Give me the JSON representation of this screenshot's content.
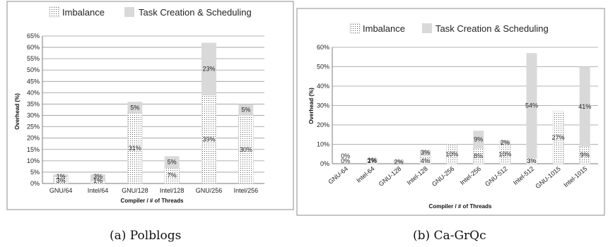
{
  "legend": {
    "imbalance_label": "Imbalance",
    "task_label": "Task Creation & Scheduling"
  },
  "colors": {
    "task": "#d9d9d9",
    "imbalance_pattern": "dotted"
  },
  "chart_data": [
    {
      "type": "bar",
      "stacked": true,
      "caption": "(a) Polblogs",
      "xlabel": "Compiler / # of Threads",
      "ylabel": "Overhead (%)",
      "ylim": [
        0,
        65
      ],
      "yticks": [
        0,
        5,
        10,
        15,
        20,
        25,
        30,
        35,
        40,
        45,
        50,
        55,
        60,
        65
      ],
      "grid": true,
      "legend_position": "top",
      "categories": [
        "GNU/64",
        "Intel/64",
        "GNU/128",
        "Intel/128",
        "GNU/256",
        "Intel/256"
      ],
      "series": [
        {
          "name": "Imbalance",
          "values": [
            3,
            1,
            31,
            7,
            39,
            30
          ],
          "labels": [
            "3%",
            "1%",
            "31%",
            "7%",
            "39%",
            "30%"
          ]
        },
        {
          "name": "Task Creation & Scheduling",
          "values": [
            1,
            3,
            5,
            5,
            23,
            5
          ],
          "labels": [
            "1%",
            "3%",
            "5%",
            "5%",
            "23%",
            "5%"
          ]
        }
      ]
    },
    {
      "type": "bar",
      "stacked": true,
      "caption": "(b) Ca-GrQc",
      "xlabel": "Compiler / # of Threads",
      "ylabel": "Overhead (%)",
      "ylim": [
        0,
        60
      ],
      "yticks": [
        0,
        10,
        20,
        30,
        40,
        50,
        60
      ],
      "grid": true,
      "legend_position": "top",
      "categories": [
        "GNU-64",
        "Intel-64",
        "GNU-128",
        "Intel-128",
        "GNU-256",
        "Intel-256",
        "GNU-512",
        "Intel-512",
        "GNU-1015",
        "Intel-1015"
      ],
      "series": [
        {
          "name": "Imbalance",
          "values": [
            0,
            2,
            0,
            4,
            10,
            8,
            10,
            3,
            27,
            9
          ],
          "labels": [
            "0%",
            "2%",
            "",
            "4%",
            "10%",
            "8%",
            "10%",
            "3%",
            "27%",
            "9%"
          ]
        },
        {
          "name": "Task Creation & Scheduling",
          "values": [
            0,
            1,
            2,
            3,
            0,
            9,
            2,
            54,
            0,
            41
          ],
          "labels": [
            "0%",
            "1%",
            "2%",
            "3%",
            "",
            "9%",
            "2%",
            "54%",
            "",
            "41%"
          ]
        }
      ]
    }
  ]
}
